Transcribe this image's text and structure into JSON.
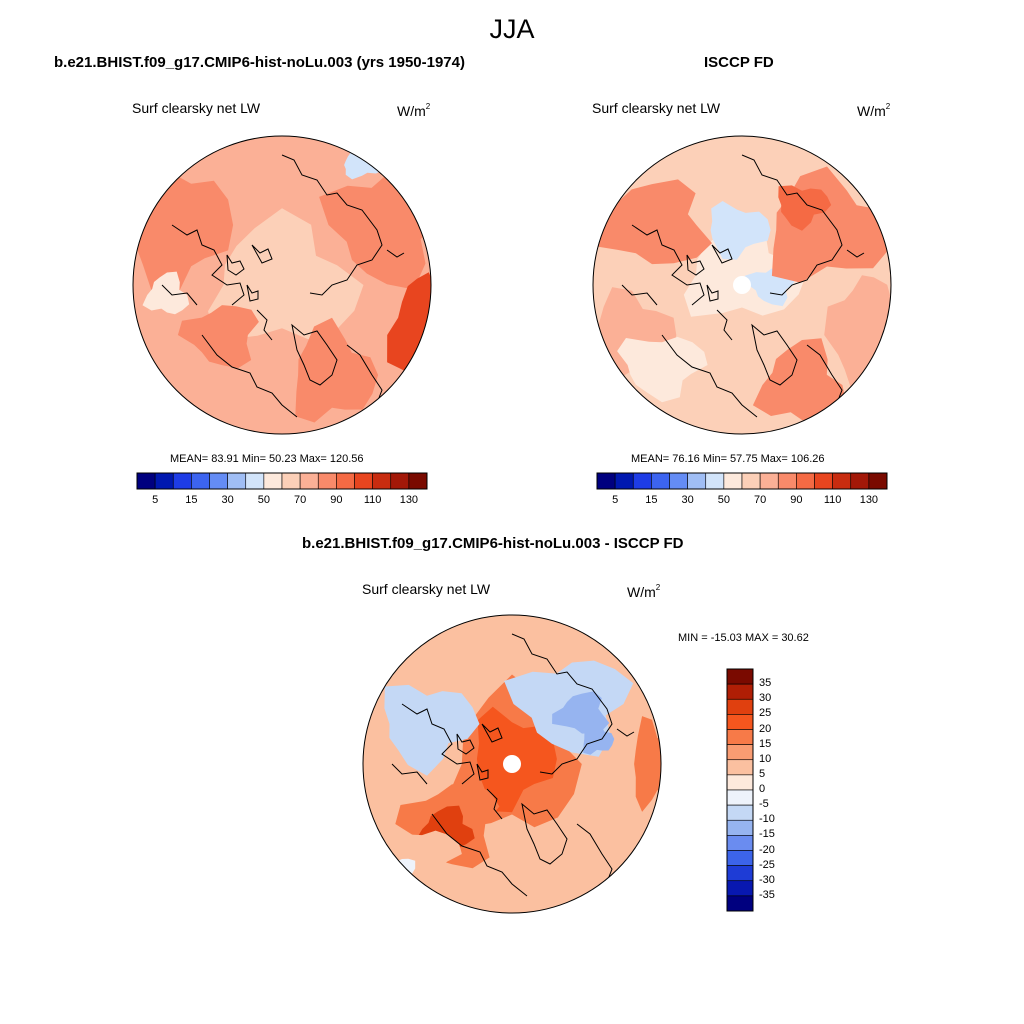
{
  "title": "JJA",
  "panels": [
    {
      "title": "b.e21.BHIST.f09_g17.CMIP6-hist-noLu.003 (yrs 1950-1974)",
      "variable": "Surf clearsky net LW",
      "units_base": "W/m",
      "units_exp": "2",
      "stats": "MEAN=  83.91  Min=  50.23  Max= 120.56",
      "mean": 83.91,
      "min": 50.23,
      "max": 120.56
    },
    {
      "title": "ISCCP FD",
      "variable": "Surf clearsky net LW",
      "units_base": "W/m",
      "units_exp": "2",
      "stats": "MEAN=  76.16  Min=  57.75  Max= 106.26",
      "mean": 76.16,
      "min": 57.75,
      "max": 106.26
    },
    {
      "title": "b.e21.BHIST.f09_g17.CMIP6-hist-noLu.003 - ISCCP FD",
      "variable": "Surf clearsky net LW",
      "units_base": "W/m",
      "units_exp": "2",
      "stats": "MIN = -15.03 MAX =  30.62",
      "min": -15.03,
      "max": 30.62
    }
  ],
  "colorbar_abs": {
    "labels": [
      "5",
      "15",
      "30",
      "50",
      "70",
      "90",
      "110",
      "130"
    ],
    "colors": [
      "#00007f",
      "#0018b0",
      "#1e3ce6",
      "#3c64f0",
      "#648cf5",
      "#a0bef5",
      "#d2e4fa",
      "#fde9dc",
      "#fcd0b8",
      "#fbb096",
      "#f98a6a",
      "#f56a44",
      "#e8451f",
      "#c82c10",
      "#a31808",
      "#7a0a00"
    ]
  },
  "colorbar_diff": {
    "labels": [
      "35",
      "30",
      "25",
      "20",
      "15",
      "10",
      "5",
      "0",
      "-5",
      "-10",
      "-15",
      "-20",
      "-25",
      "-30",
      "-35"
    ],
    "colors": [
      "#7a0a00",
      "#b01e05",
      "#e0400f",
      "#f5561e",
      "#f77a48",
      "#f99c72",
      "#fbc0a0",
      "#fde9dc",
      "#eef3fb",
      "#c4d8f5",
      "#96b4f0",
      "#6a8cf0",
      "#3c64ea",
      "#1e3cd6",
      "#0818b0",
      "#00007f"
    ]
  }
}
